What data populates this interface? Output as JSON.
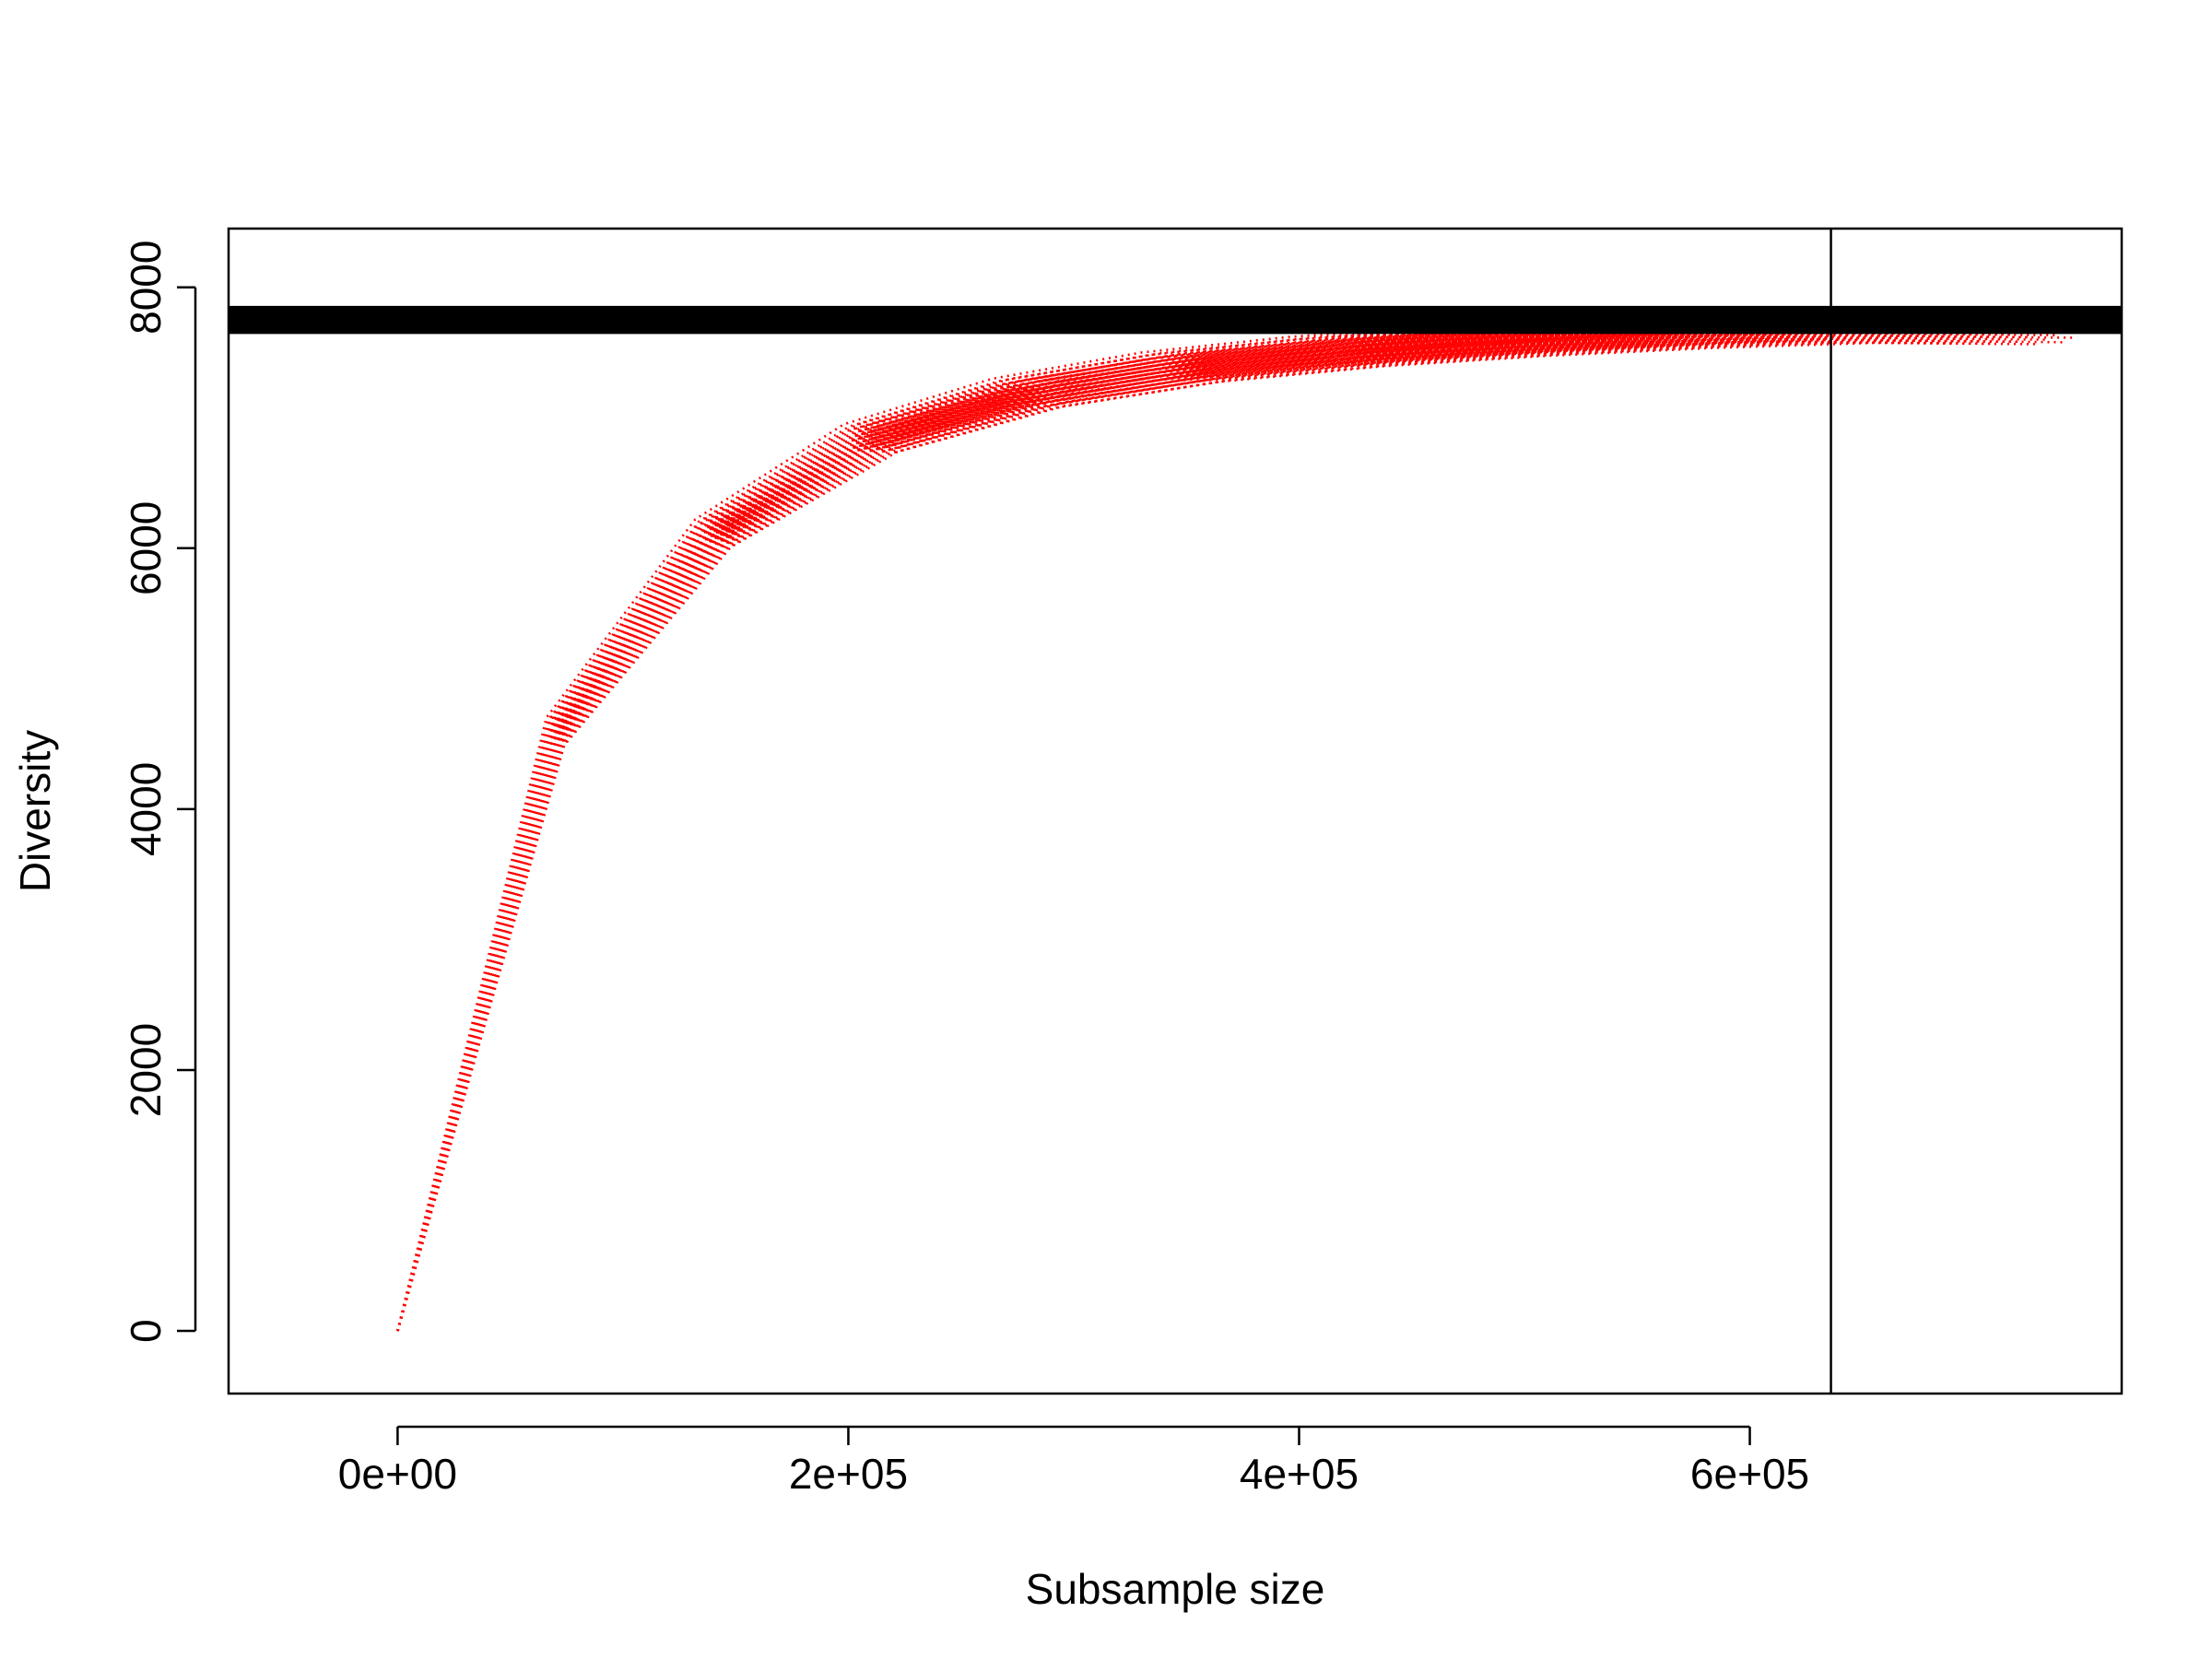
{
  "chart_data": {
    "type": "line",
    "title": "",
    "xlabel": "Subsample size",
    "ylabel": "Diversity",
    "xlim": [
      -75000,
      765000
    ],
    "ylim": [
      -330000,
      8230
    ],
    "ylim_note": "",
    "x_ticks": [
      {
        "value": 0,
        "label": "0e+00"
      },
      {
        "value": 200000,
        "label": "2e+05"
      },
      {
        "value": 400000,
        "label": "4e+05"
      },
      {
        "value": 600000,
        "label": "6e+05"
      }
    ],
    "y_ticks": [
      {
        "value": 0,
        "label": "0"
      },
      {
        "value": 2000,
        "label": "2000"
      },
      {
        "value": 4000,
        "label": "4000"
      },
      {
        "value": 6000,
        "label": "6000"
      },
      {
        "value": 8000,
        "label": "8000"
      }
    ],
    "grid": false,
    "legend": "none",
    "series_color": "#ff0000",
    "reference_color": "#000000",
    "vertical_reference_x": 636000,
    "horizontal_reference_band": [
      7650,
      7850
    ],
    "curve_count": 60,
    "curves": {
      "x_fractions": [
        0,
        0.1,
        0.2,
        0.3,
        0.4,
        0.5,
        0.6,
        0.7,
        0.8,
        0.9,
        1.0
      ],
      "y_template": [
        0,
        4700,
        6220,
        6950,
        7300,
        7500,
        7620,
        7700,
        7760,
        7800,
        7790
      ],
      "total_range": [
        660000,
        745000
      ],
      "offset_range": [
        0,
        230
      ]
    }
  }
}
